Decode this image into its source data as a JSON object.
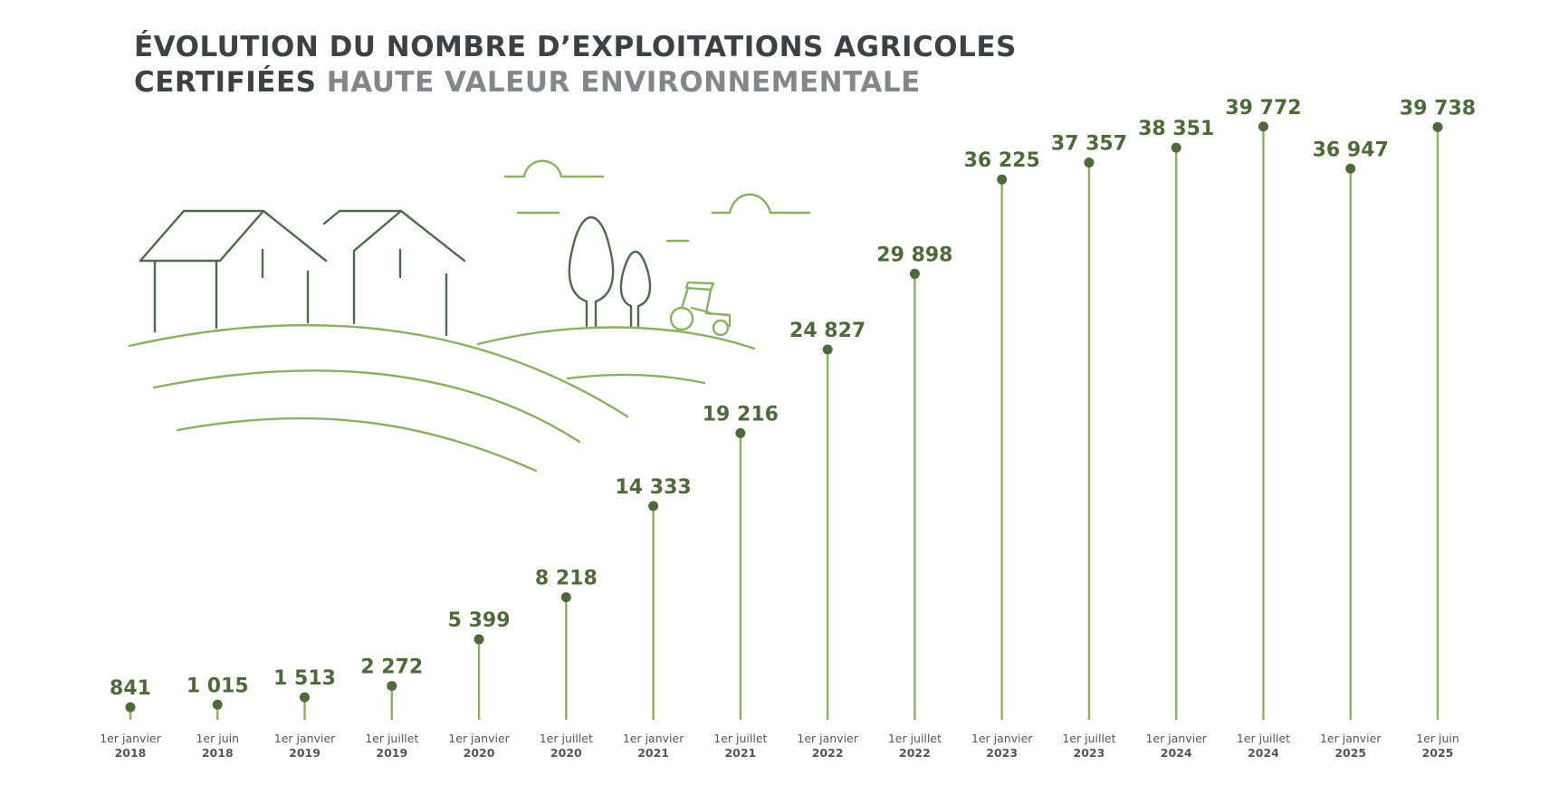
{
  "title": {
    "line1": "ÉVOLUTION DU NOMBRE D’EXPLOITATIONS AGRICOLES",
    "line2_dark": "CERTIFIÉES",
    "line2_grey": "HAUTE VALEUR ENVIRONNEMENTALE"
  },
  "colors": {
    "stem": "#8cb063",
    "dot": "#4e6a3a",
    "value_text": "#4e6a3a",
    "title_dark": "#3f4045",
    "title_grey": "#85868a",
    "illustration_dark": "#4d6a4a",
    "illustration_light": "#8cb063"
  },
  "chart_data": {
    "type": "lollipop",
    "categories": [
      {
        "date": "1er janvier",
        "year": "2018"
      },
      {
        "date": "1er juin",
        "year": "2018"
      },
      {
        "date": "1er janvier",
        "year": "2019"
      },
      {
        "date": "1er juillet",
        "year": "2019"
      },
      {
        "date": "1er janvier",
        "year": "2020"
      },
      {
        "date": "1er juillet",
        "year": "2020"
      },
      {
        "date": "1er janvier",
        "year": "2021"
      },
      {
        "date": "1er juillet",
        "year": "2021"
      },
      {
        "date": "1er janvier",
        "year": "2022"
      },
      {
        "date": "1er juillet",
        "year": "2022"
      },
      {
        "date": "1er janvier",
        "year": "2023"
      },
      {
        "date": "1er juillet",
        "year": "2023"
      },
      {
        "date": "1er janvier",
        "year": "2024"
      },
      {
        "date": "1er juillet",
        "year": "2024"
      },
      {
        "date": "1er janvier",
        "year": "2025"
      },
      {
        "date": "1er juin",
        "year": "2025"
      }
    ],
    "values": [
      841,
      1015,
      1513,
      2272,
      5399,
      8218,
      14333,
      19216,
      24827,
      29898,
      36225,
      37357,
      38351,
      39772,
      36947,
      39738
    ],
    "value_labels": [
      "841",
      "1 015",
      "1 513",
      "2 272",
      "5 399",
      "8 218",
      "14 333",
      "19 216",
      "24 827",
      "29 898",
      "36 225",
      "37 357",
      "38 351",
      "39 772",
      "36 947",
      "39 738"
    ],
    "ylim": [
      0,
      40000
    ],
    "grid": false,
    "legend": "none"
  }
}
